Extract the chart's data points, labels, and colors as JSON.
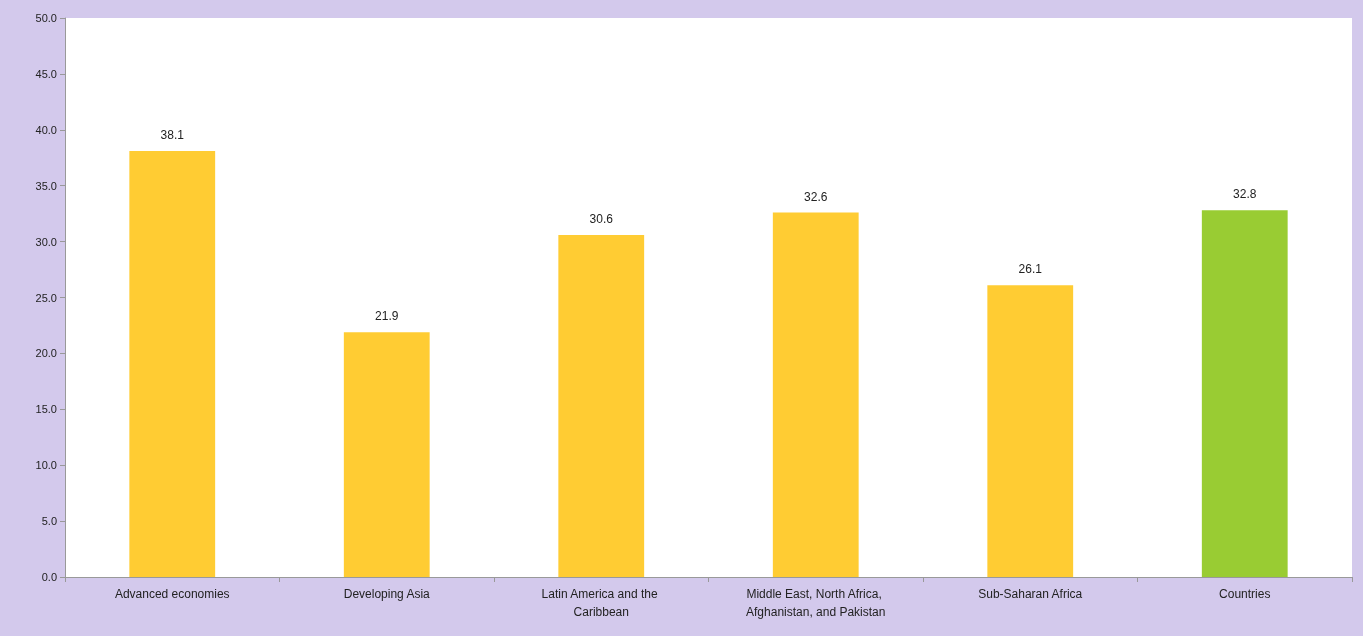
{
  "chart_data": {
    "type": "bar",
    "categories": [
      "Advanced economies",
      "Developing Asia",
      "Latin America and the Caribbean",
      "Middle East, North Africa, Afghanistan, and Pakistan",
      "Sub-Saharan Africa",
      "Countries"
    ],
    "values": [
      38.1,
      21.9,
      30.6,
      32.6,
      26.1,
      32.8
    ],
    "colors": [
      "#ffcc33",
      "#ffcc33",
      "#ffcc33",
      "#ffcc33",
      "#ffcc33",
      "#99cc33"
    ],
    "ylim": [
      0,
      50
    ],
    "yticks": [
      {
        "value": 0,
        "label": "0.0"
      },
      {
        "value": 5,
        "label": "5.0"
      },
      {
        "value": 10,
        "label": "10.0"
      },
      {
        "value": 15,
        "label": "15.0"
      },
      {
        "value": 20,
        "label": "20.0"
      },
      {
        "value": 25,
        "label": "25.0"
      },
      {
        "value": 30,
        "label": "30.0"
      },
      {
        "value": 35,
        "label": "35.0"
      },
      {
        "value": 40,
        "label": "40.0"
      },
      {
        "value": 45,
        "label": "45.0"
      },
      {
        "value": 50,
        "label": "50.0"
      }
    ],
    "data_labels": true
  }
}
